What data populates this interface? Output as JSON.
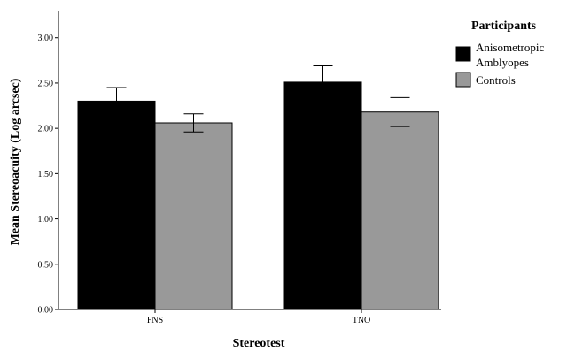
{
  "chart_data": {
    "type": "bar",
    "categories": [
      "FNS",
      "TNO"
    ],
    "series": [
      {
        "name": "Anisometropic Amblyopes",
        "values": [
          2.3,
          2.51
        ],
        "error": [
          [
            2.15,
            2.45
          ],
          [
            2.32,
            2.69
          ]
        ],
        "color": "#000000"
      },
      {
        "name": "Controls",
        "values": [
          2.06,
          2.18
        ],
        "error": [
          [
            1.96,
            2.16
          ],
          [
            2.02,
            2.34
          ]
        ],
        "color": "#999999"
      }
    ],
    "xlabel": "Stereotest",
    "ylabel": "Mean Stereoacuity (Log arcsec)",
    "ylim": [
      0,
      3.3
    ],
    "yticks": [
      "0.00",
      "0.50",
      "1.00",
      "1.50",
      "2.00",
      "2.50",
      "3.00"
    ],
    "legend": {
      "title": "Participants",
      "placement": "right",
      "labels": [
        "Anisometropic",
        "Amblyopes",
        "Controls"
      ]
    },
    "grid": false
  }
}
